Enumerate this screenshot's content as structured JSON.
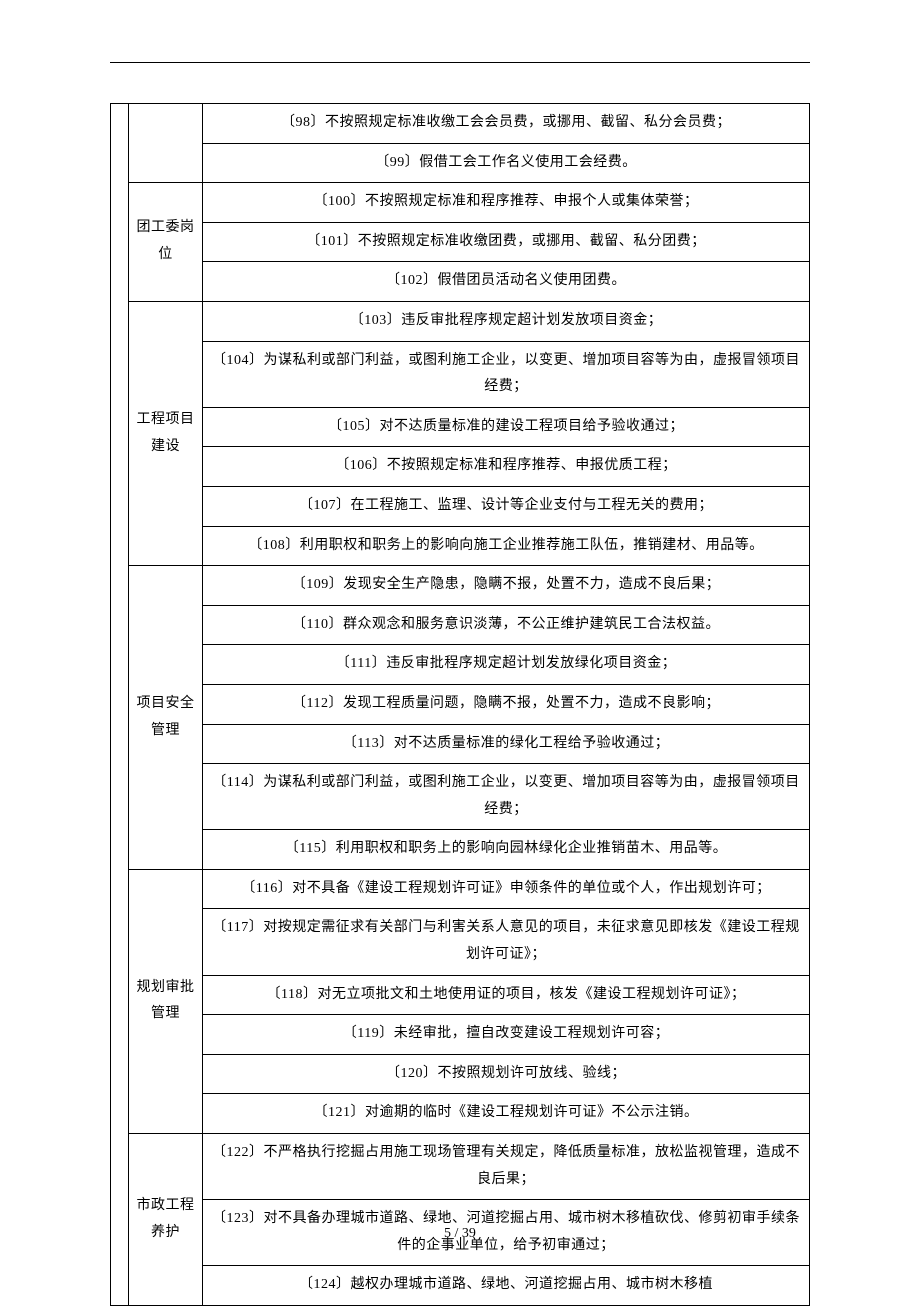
{
  "page": {
    "footer": "5 / 39"
  },
  "table": {
    "columns": {
      "narrow_width": 18,
      "category_width": 74
    },
    "font_size": 14,
    "line_height": 1.9,
    "border_color": "#000000",
    "text_color": "#000000",
    "sections": [
      {
        "category": "",
        "items": [
          "〔98〕不按照规定标准收缴工会会员费，或挪用、截留、私分会员费；",
          "〔99〕假借工会工作名义使用工会经费。"
        ]
      },
      {
        "category": "团工委岗位",
        "items": [
          "〔100〕不按照规定标准和程序推荐、申报个人或集体荣誉；",
          "〔101〕不按照规定标准收缴团费，或挪用、截留、私分团费；",
          "〔102〕假借团员活动名义使用团费。"
        ]
      },
      {
        "category": "工程项目建设",
        "items": [
          "〔103〕违反审批程序规定超计划发放项目资金；",
          "〔104〕为谋私利或部门利益，或图利施工企业，以变更、增加项目容等为由，虚报冒领项目经费；",
          "〔105〕对不达质量标准的建设工程项目给予验收通过；",
          "〔106〕不按照规定标准和程序推荐、申报优质工程；",
          "〔107〕在工程施工、监理、设计等企业支付与工程无关的费用；",
          "〔108〕利用职权和职务上的影响向施工企业推荐施工队伍，推销建材、用品等。"
        ]
      },
      {
        "category": "项目安全管理",
        "items": [
          "〔109〕发现安全生产隐患，隐瞒不报，处置不力，造成不良后果；",
          "〔110〕群众观念和服务意识淡薄，不公正维护建筑民工合法权益。",
          "〔111〕违反审批程序规定超计划发放绿化项目资金；",
          "〔112〕发现工程质量问题，隐瞒不报，处置不力，造成不良影响；",
          "〔113〕对不达质量标准的绿化工程给予验收通过；",
          "〔114〕为谋私利或部门利益，或图利施工企业，以变更、增加项目容等为由，虚报冒领项目经费；",
          "〔115〕利用职权和职务上的影响向园林绿化企业推销苗木、用品等。"
        ]
      },
      {
        "category": "规划审批管理",
        "items": [
          "〔116〕对不具备《建设工程规划许可证》申领条件的单位或个人，作出规划许可；",
          "〔117〕对按规定需征求有关部门与利害关系人意见的项目，未征求意见即核发《建设工程规划许可证》；",
          "〔118〕对无立项批文和土地使用证的项目，核发《建设工程规划许可证》；",
          "〔119〕未经审批，擅自改变建设工程规划许可容；",
          "〔120〕不按照规划许可放线、验线；",
          "〔121〕对逾期的临时《建设工程规划许可证》不公示注销。"
        ]
      },
      {
        "category": "市政工程养护",
        "items": [
          "〔122〕不严格执行挖掘占用施工现场管理有关规定，降低质量标准，放松监视管理，造成不良后果；",
          "〔123〕对不具备办理城市道路、绿地、河道挖掘占用、城市树木移植砍伐、修剪初审手续条件的企事业单位，给予初审通过；",
          "〔124〕越权办理城市道路、绿地、河道挖掘占用、城市树木移植"
        ]
      }
    ]
  }
}
